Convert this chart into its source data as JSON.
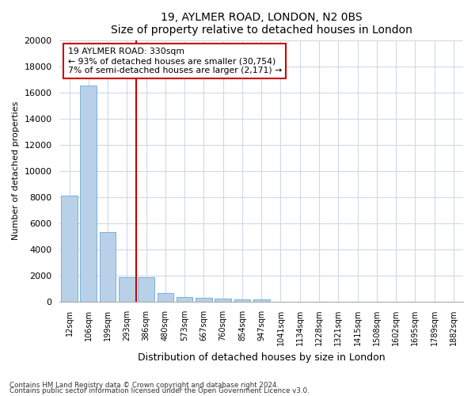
{
  "title1": "19, AYLMER ROAD, LONDON, N2 0BS",
  "title2": "Size of property relative to detached houses in London",
  "xlabel": "Distribution of detached houses by size in London",
  "ylabel": "Number of detached properties",
  "categories": [
    "12sqm",
    "106sqm",
    "199sqm",
    "293sqm",
    "386sqm",
    "480sqm",
    "573sqm",
    "667sqm",
    "760sqm",
    "854sqm",
    "947sqm",
    "1041sqm",
    "1134sqm",
    "1228sqm",
    "1321sqm",
    "1415sqm",
    "1508sqm",
    "1602sqm",
    "1695sqm",
    "1789sqm",
    "1882sqm"
  ],
  "values": [
    8100,
    16550,
    5300,
    1850,
    1850,
    650,
    350,
    280,
    230,
    195,
    170,
    0,
    0,
    0,
    0,
    0,
    0,
    0,
    0,
    0,
    0
  ],
  "bar_color": "#b8d0e8",
  "bar_edge_color": "#6aaad4",
  "vline_x": 3.5,
  "vline_color": "#cc0000",
  "annotation_text": "19 AYLMER ROAD: 330sqm\n← 93% of detached houses are smaller (30,754)\n7% of semi-detached houses are larger (2,171) →",
  "annotation_box_color": "#ffffff",
  "annotation_box_edge": "#cc0000",
  "ylim": [
    0,
    20000
  ],
  "yticks": [
    0,
    2000,
    4000,
    6000,
    8000,
    10000,
    12000,
    14000,
    16000,
    18000,
    20000
  ],
  "footnote1": "Contains HM Land Registry data © Crown copyright and database right 2024.",
  "footnote2": "Contains public sector information licensed under the Open Government Licence v3.0.",
  "bg_color": "#ffffff",
  "plot_bg_color": "#ffffff"
}
